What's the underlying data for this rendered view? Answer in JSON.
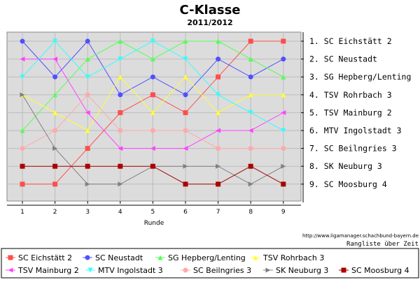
{
  "chart_data": {
    "type": "line",
    "title": "C-Klasse",
    "subtitle": "2011/2012",
    "xlabel": "Runde",
    "ylabel": "",
    "x": [
      1,
      2,
      3,
      4,
      5,
      6,
      7,
      8,
      9
    ],
    "ylim": [
      1,
      9
    ],
    "y_inverted": true,
    "grid": true,
    "final_ranking": [
      "1. SC Eichstätt 2",
      "2. SC Neustadt",
      "3. SG Hepberg/Lenting",
      "4. TSV Rohrbach 3",
      "5. TSV Mainburg 2",
      "6. MTV Ingolstadt 3",
      "7. SC Beilngries 3",
      "8. SK Neuburg 3",
      "9. SC Moosburg 4"
    ],
    "source_url": "http://www.ligamanager.schachbund-bayern.de",
    "caption": "Rangliste über Zeit",
    "legend_position": "bottom",
    "series": [
      {
        "name": "SC Eichstätt 2",
        "color": "#ff4d4d",
        "marker": "square",
        "values": [
          9,
          9,
          7,
          5,
          4,
          5,
          3,
          1,
          1
        ]
      },
      {
        "name": "SC Neustadt",
        "color": "#5050ff",
        "marker": "circle",
        "values": [
          1,
          3,
          1,
          4,
          3,
          4,
          2,
          3,
          2
        ]
      },
      {
        "name": "SG Hepberg/Lenting",
        "color": "#55ff55",
        "marker": "triangle",
        "values": [
          6,
          4,
          2,
          1,
          2,
          1,
          1,
          2,
          3
        ]
      },
      {
        "name": "TSV Rohrbach 3",
        "color": "#ffff33",
        "marker": "triangle",
        "values": [
          4,
          5,
          6,
          3,
          5,
          3,
          5,
          4,
          4
        ]
      },
      {
        "name": "TSV Mainburg 2",
        "color": "#ff44ff",
        "marker": "triangle-left",
        "values": [
          2,
          2,
          5,
          7,
          7,
          7,
          6,
          6,
          5
        ]
      },
      {
        "name": "MTV Ingolstadt 3",
        "color": "#33ffff",
        "marker": "triangle-down",
        "values": [
          3,
          1,
          3,
          2,
          1,
          2,
          4,
          5,
          6
        ]
      },
      {
        "name": "SC Beilngries 3",
        "color": "#ffaaaa",
        "marker": "circle",
        "values": [
          7,
          6,
          4,
          6,
          6,
          6,
          7,
          7,
          7
        ]
      },
      {
        "name": "SK Neuburg 3",
        "color": "#808080",
        "marker": "triangle-right",
        "values": [
          4,
          7,
          9,
          9,
          8,
          8,
          8,
          9,
          8
        ]
      },
      {
        "name": "SC Moosburg 4",
        "color": "#aa0000",
        "marker": "square",
        "values": [
          8,
          8,
          8,
          8,
          8,
          9,
          9,
          8,
          9
        ]
      }
    ]
  }
}
